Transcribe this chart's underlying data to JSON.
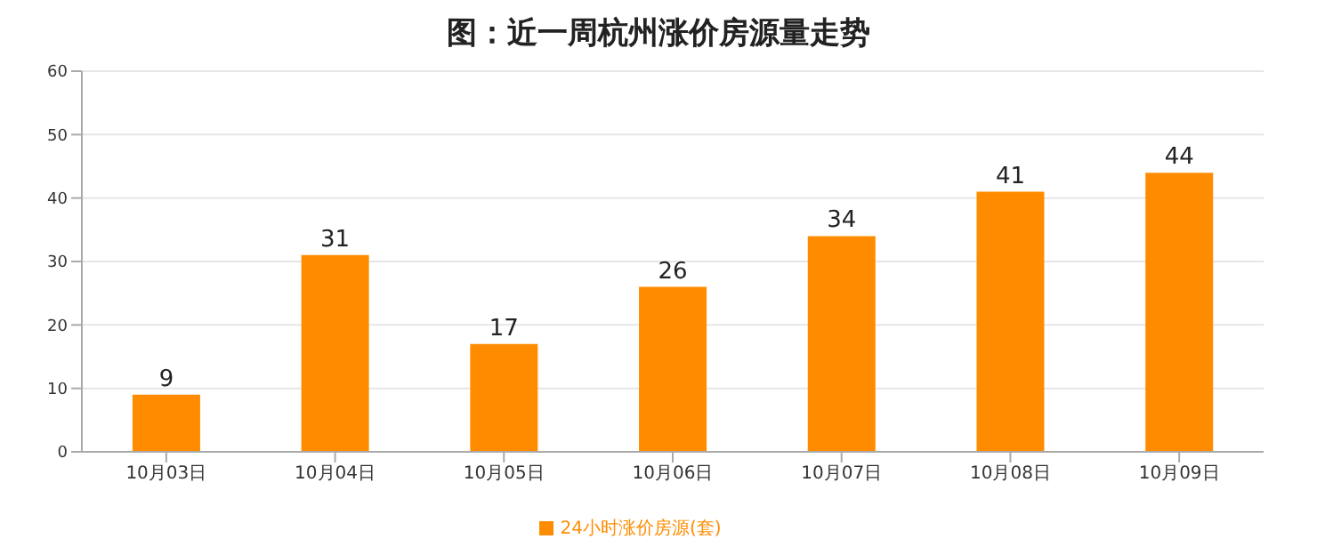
{
  "chart_data": {
    "type": "bar",
    "title": "图：近一周杭州涨价房源量走势",
    "categories": [
      "10月03日",
      "10月04日",
      "10月05日",
      "10月06日",
      "10月07日",
      "10月08日",
      "10月09日"
    ],
    "series": [
      {
        "name": "24小时涨价房源(套)",
        "color": "#ff8c00",
        "values": [
          9,
          31,
          17,
          26,
          34,
          41,
          44
        ]
      }
    ],
    "ylim": [
      0,
      60
    ],
    "yticks": [
      0,
      10,
      20,
      30,
      40,
      50,
      60
    ],
    "grid": "y",
    "legend": "bottom",
    "data_labels": true
  }
}
